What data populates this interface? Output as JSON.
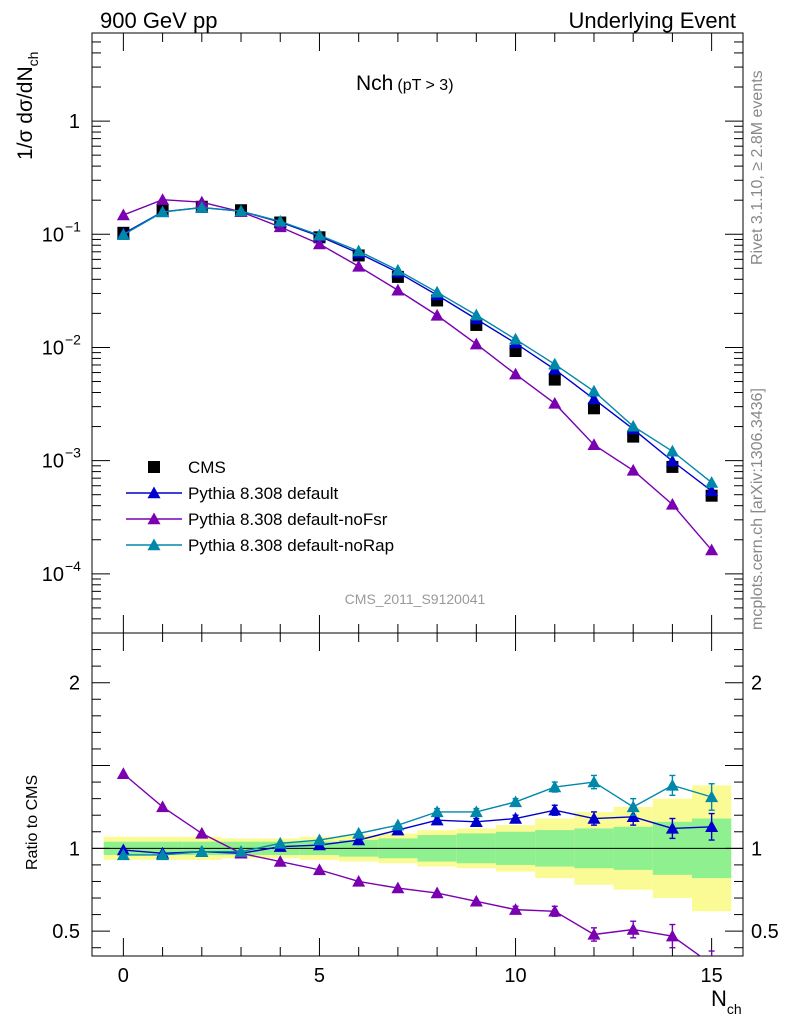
{
  "header": {
    "left": "900 GeV pp",
    "right": "Underlying Event"
  },
  "plot_label": {
    "main": "Nch",
    "sub": "(pT >  3)"
  },
  "watermark": "CMS_2011_S9120041",
  "side_text": {
    "rivet": "Rivet 3.1.10, ≥ 2.8M events",
    "mcplots": "mcplots.cern.ch [arXiv:1306.3436]"
  },
  "axes": {
    "ylabel_top": "1/σ dσ/dN",
    "ylabel_top_sub": "ch",
    "ylabel_bottom": "Ratio to CMS",
    "xlabel": "N",
    "xlabel_sub": "ch"
  },
  "legend": [
    {
      "label": "CMS",
      "color": "#000000",
      "marker": "square"
    },
    {
      "label": "Pythia 8.308 default",
      "color": "#0000cc",
      "marker": "triangle"
    },
    {
      "label": "Pythia 8.308 default-noFsr",
      "color": "#7a00b0",
      "marker": "triangle"
    },
    {
      "label": "Pythia 8.308 default-noRap",
      "color": "#0088aa",
      "marker": "triangle"
    }
  ],
  "chart_data": [
    {
      "type": "line",
      "scale": "log",
      "x": [
        0,
        1,
        2,
        3,
        4,
        5,
        6,
        7,
        8,
        9,
        10,
        11,
        12,
        13,
        14,
        15
      ],
      "xlim": [
        -0.8,
        15.8
      ],
      "ylim": [
        3e-05,
        6
      ],
      "y_ticks": [
        "10^{-4}",
        "10^{-3}",
        "10^{-2}",
        "10^{-1}",
        "1"
      ],
      "x_ticks": [
        0,
        5,
        10,
        15
      ],
      "series": [
        {
          "name": "CMS",
          "color": "#000000",
          "marker": "square",
          "values": [
            0.103,
            0.163,
            0.175,
            0.163,
            0.127,
            0.094,
            0.065,
            0.042,
            0.026,
            0.0158,
            0.0093,
            0.0052,
            0.0029,
            0.00163,
            0.00088,
            0.00049
          ]
        },
        {
          "name": "Pythia 8.308 default",
          "color": "#0000cc",
          "marker": "triangle",
          "values": [
            0.101,
            0.158,
            0.172,
            0.16,
            0.128,
            0.096,
            0.068,
            0.046,
            0.029,
            0.0178,
            0.0109,
            0.0064,
            0.0035,
            0.0019,
            0.00099,
            0.00054
          ]
        },
        {
          "name": "Pythia 8.308 default-noFsr",
          "color": "#7a00b0",
          "marker": "triangle",
          "values": [
            0.148,
            0.202,
            0.192,
            0.158,
            0.116,
            0.082,
            0.052,
            0.032,
            0.0192,
            0.0107,
            0.0058,
            0.0032,
            0.00138,
            0.00082,
            0.00041,
            0.000162
          ]
        },
        {
          "name": "Pythia 8.308 default-noRap",
          "color": "#0088aa",
          "marker": "triangle",
          "values": [
            0.099,
            0.157,
            0.172,
            0.16,
            0.13,
            0.098,
            0.071,
            0.048,
            0.0307,
            0.0193,
            0.0118,
            0.0071,
            0.0041,
            0.00201,
            0.00121,
            0.00064
          ]
        }
      ]
    },
    {
      "type": "line",
      "x": [
        0,
        1,
        2,
        3,
        4,
        5,
        6,
        7,
        8,
        9,
        10,
        11,
        12,
        13,
        14,
        15
      ],
      "xlim": [
        -0.8,
        15.8
      ],
      "ylim": [
        0.35,
        2.3
      ],
      "y_ticks": [
        0.5,
        1,
        2
      ],
      "x_ticks": [
        0,
        5,
        10,
        15
      ],
      "ylabel": "Ratio to CMS",
      "band_yellow_halfwidth": [
        0.07,
        0.07,
        0.07,
        0.06,
        0.06,
        0.07,
        0.08,
        0.09,
        0.11,
        0.12,
        0.14,
        0.18,
        0.22,
        0.25,
        0.3,
        0.38
      ],
      "band_green_halfwidth": [
        0.04,
        0.04,
        0.04,
        0.04,
        0.04,
        0.04,
        0.05,
        0.06,
        0.08,
        0.09,
        0.1,
        0.11,
        0.12,
        0.13,
        0.16,
        0.18
      ],
      "series": [
        {
          "name": "Pythia 8.308 default",
          "color": "#0000cc",
          "values": [
            0.99,
            0.97,
            0.98,
            0.97,
            1.01,
            1.02,
            1.05,
            1.11,
            1.17,
            1.16,
            1.18,
            1.23,
            1.18,
            1.19,
            1.12,
            1.13
          ],
          "errors": [
            0.01,
            0.01,
            0.01,
            0.01,
            0.01,
            0.01,
            0.01,
            0.01,
            0.02,
            0.02,
            0.02,
            0.03,
            0.04,
            0.05,
            0.06,
            0.08
          ]
        },
        {
          "name": "Pythia 8.308 default-noFsr",
          "color": "#7a00b0",
          "values": [
            1.45,
            1.25,
            1.09,
            0.97,
            0.92,
            0.87,
            0.8,
            0.76,
            0.73,
            0.68,
            0.63,
            0.62,
            0.48,
            0.51,
            0.47,
            0.3
          ],
          "errors": [
            0.01,
            0.01,
            0.01,
            0.01,
            0.01,
            0.01,
            0.01,
            0.01,
            0.01,
            0.01,
            0.02,
            0.03,
            0.04,
            0.05,
            0.07,
            0.08
          ]
        },
        {
          "name": "Pythia 8.308 default-noRap",
          "color": "#0088aa",
          "values": [
            0.96,
            0.96,
            0.98,
            0.98,
            1.03,
            1.05,
            1.09,
            1.14,
            1.22,
            1.22,
            1.28,
            1.37,
            1.4,
            1.25,
            1.38,
            1.31
          ],
          "errors": [
            0.01,
            0.01,
            0.01,
            0.01,
            0.01,
            0.01,
            0.01,
            0.01,
            0.02,
            0.02,
            0.02,
            0.03,
            0.04,
            0.05,
            0.06,
            0.08
          ]
        }
      ]
    }
  ]
}
